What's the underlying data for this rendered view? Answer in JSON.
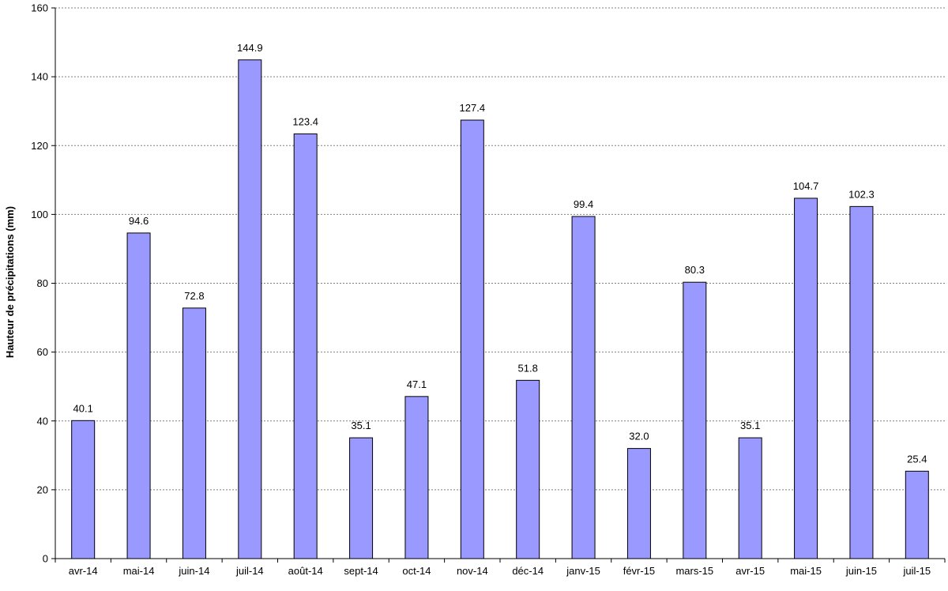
{
  "chart_data": {
    "type": "bar",
    "categories": [
      "avr-14",
      "mai-14",
      "juin-14",
      "juil-14",
      "août-14",
      "sept-14",
      "oct-14",
      "nov-14",
      "déc-14",
      "janv-15",
      "févr-15",
      "mars-15",
      "avr-15",
      "mai-15",
      "juin-15",
      "juil-15"
    ],
    "values": [
      40.1,
      94.6,
      72.8,
      144.9,
      123.4,
      35.1,
      47.1,
      127.4,
      51.8,
      99.4,
      32.0,
      80.3,
      35.1,
      104.7,
      102.3,
      25.4
    ],
    "value_labels": [
      "40.1",
      "94.6",
      "72.8",
      "144.9",
      "123.4",
      "35.1",
      "47.1",
      "127.4",
      "51.8",
      "99.4",
      "32.0",
      "80.3",
      "35.1",
      "104.7",
      "102.3",
      "25.4"
    ],
    "title": "",
    "xlabel": "",
    "ylabel": "Hauteur de précipitations (mm)",
    "ylim": [
      0,
      160
    ],
    "yticks": [
      0,
      20,
      40,
      60,
      80,
      100,
      120,
      140,
      160
    ],
    "grid": "horizontal-dashed",
    "legend": "none",
    "colors": {
      "bar_fill": "#9999ff",
      "bar_stroke": "#000000",
      "grid": "#808080",
      "axis": "#000000"
    }
  }
}
